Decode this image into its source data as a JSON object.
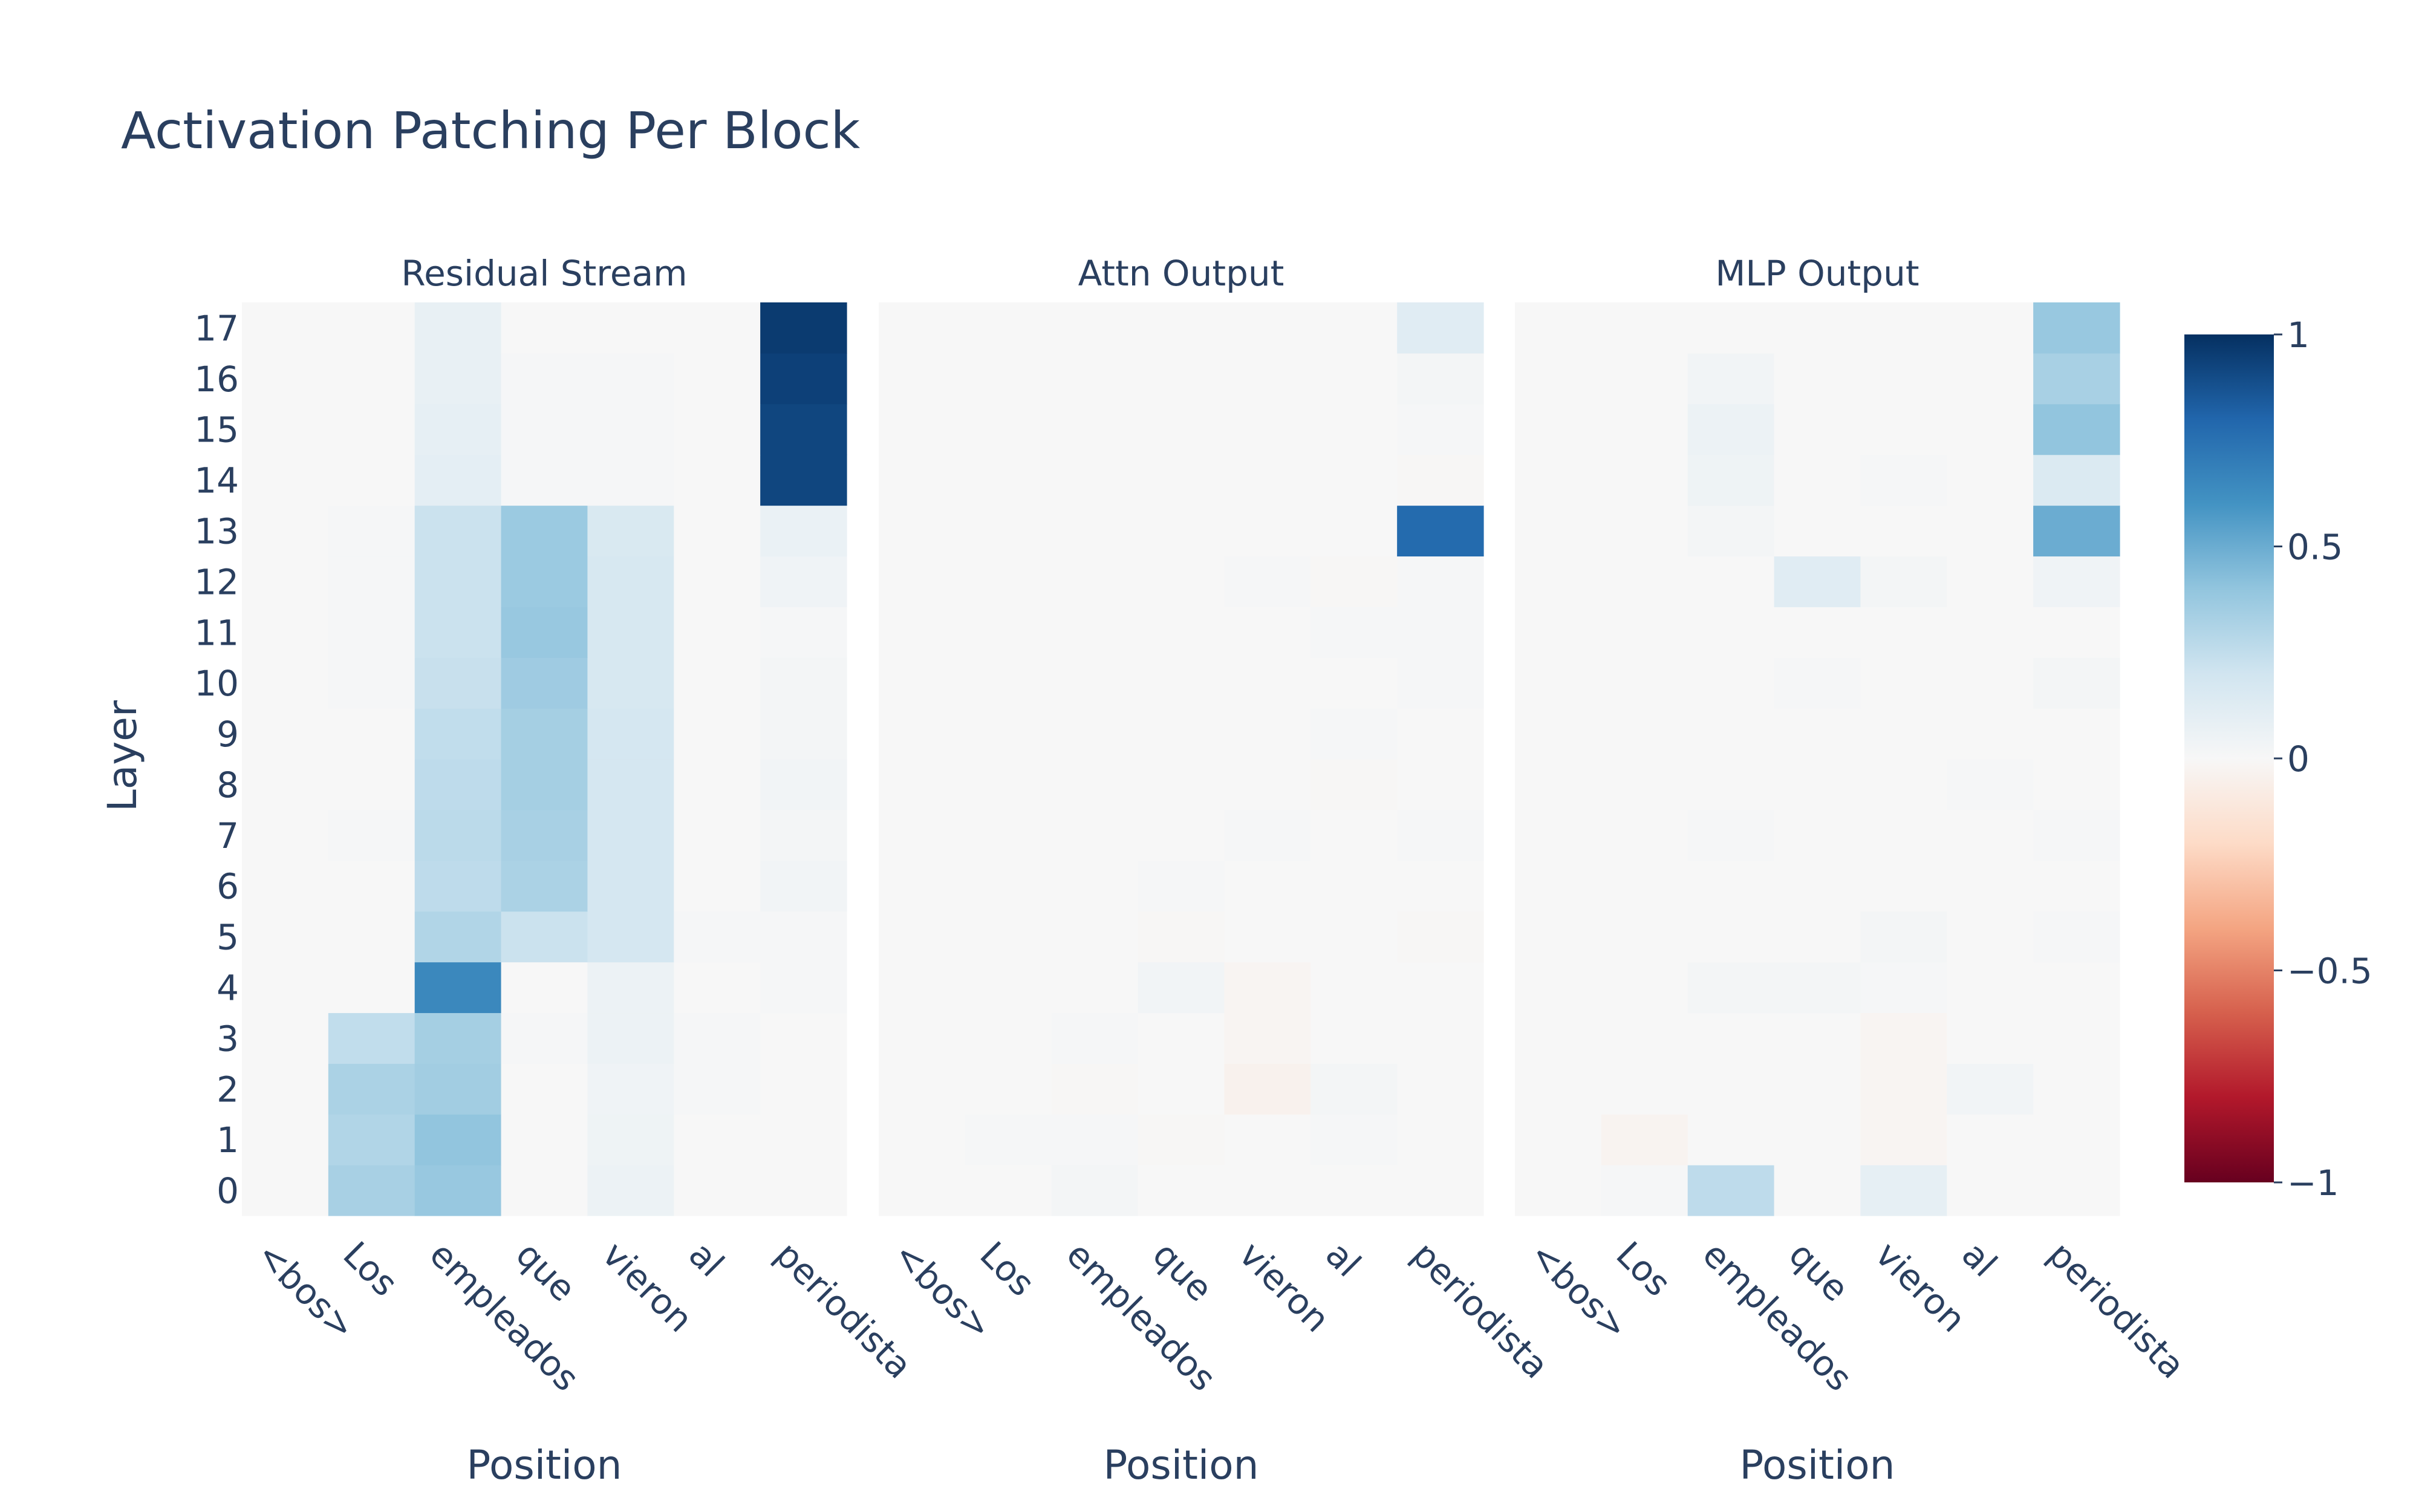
{
  "chart_data": {
    "type": "heatmap",
    "title": "Activation Patching Per Block",
    "ylabel": "Layer",
    "xlabel": "Position",
    "positions": [
      "<bos>",
      "Los",
      "empleados",
      "que",
      "vieron",
      "al",
      "periodista"
    ],
    "layers": [
      0,
      1,
      2,
      3,
      4,
      5,
      6,
      7,
      8,
      9,
      10,
      11,
      12,
      13,
      14,
      15,
      16,
      17
    ],
    "zlim": [
      -1,
      1
    ],
    "colorbar_ticks": [
      {
        "value": 1,
        "label": "1"
      },
      {
        "value": 0.5,
        "label": "0.5"
      },
      {
        "value": 0,
        "label": "0"
      },
      {
        "value": -0.5,
        "label": "−0.5"
      },
      {
        "value": -1,
        "label": "−1"
      }
    ],
    "colorscale": [
      [
        0.0,
        "#67001f"
      ],
      [
        0.1,
        "#b2182b"
      ],
      [
        0.2,
        "#d6604d"
      ],
      [
        0.3,
        "#f4a582"
      ],
      [
        0.4,
        "#fddbc7"
      ],
      [
        0.5,
        "#f7f7f7"
      ],
      [
        0.6,
        "#d1e5f0"
      ],
      [
        0.7,
        "#92c5de"
      ],
      [
        0.8,
        "#4393c3"
      ],
      [
        0.9,
        "#2166ac"
      ],
      [
        1.0,
        "#053061"
      ]
    ],
    "panels": [
      {
        "name": "Residual Stream",
        "z": [
          [
            0.0,
            0.33,
            0.38,
            0.0,
            0.06,
            0.0,
            0.0
          ],
          [
            0.0,
            0.3,
            0.4,
            0.0,
            0.05,
            0.0,
            0.0
          ],
          [
            0.0,
            0.32,
            0.35,
            0.0,
            0.04,
            0.01,
            0.0
          ],
          [
            0.0,
            0.25,
            0.34,
            0.01,
            0.06,
            0.01,
            0.0
          ],
          [
            0.0,
            0.0,
            0.65,
            0.0,
            0.06,
            0.0,
            0.01
          ],
          [
            0.0,
            0.0,
            0.3,
            0.22,
            0.18,
            0.01,
            0.01
          ],
          [
            0.0,
            0.0,
            0.26,
            0.32,
            0.18,
            0.0,
            0.03
          ],
          [
            0.0,
            0.01,
            0.27,
            0.33,
            0.18,
            0.0,
            0.02
          ],
          [
            0.0,
            0.0,
            0.26,
            0.34,
            0.18,
            0.0,
            0.03
          ],
          [
            0.0,
            0.0,
            0.25,
            0.34,
            0.18,
            0.0,
            0.02
          ],
          [
            0.0,
            0.01,
            0.23,
            0.36,
            0.17,
            0.0,
            0.02
          ],
          [
            0.0,
            0.01,
            0.22,
            0.38,
            0.17,
            0.0,
            0.01
          ],
          [
            0.0,
            0.01,
            0.22,
            0.37,
            0.17,
            0.0,
            0.04
          ],
          [
            0.0,
            0.01,
            0.22,
            0.37,
            0.16,
            0.0,
            0.07
          ],
          [
            0.0,
            0.0,
            0.1,
            0.01,
            0.01,
            0.0,
            0.92
          ],
          [
            0.0,
            0.0,
            0.09,
            0.01,
            0.01,
            0.0,
            0.92
          ],
          [
            0.0,
            0.0,
            0.08,
            0.01,
            0.01,
            0.0,
            0.94
          ],
          [
            0.0,
            0.0,
            0.08,
            0.0,
            0.0,
            0.0,
            0.96
          ]
        ]
      },
      {
        "name": "Attn Output",
        "z": [
          [
            0.0,
            0.0,
            0.02,
            0.0,
            0.0,
            0.0,
            0.0
          ],
          [
            0.0,
            0.01,
            0.01,
            -0.01,
            0.0,
            0.01,
            0.0
          ],
          [
            0.0,
            0.0,
            -0.01,
            0.0,
            -0.04,
            0.02,
            0.0
          ],
          [
            0.0,
            0.0,
            0.01,
            0.0,
            -0.02,
            0.0,
            0.0
          ],
          [
            0.0,
            0.0,
            0.0,
            0.03,
            -0.02,
            0.0,
            0.0
          ],
          [
            0.0,
            0.0,
            0.0,
            -0.01,
            0.0,
            0.0,
            -0.01
          ],
          [
            0.0,
            0.0,
            0.0,
            0.01,
            0.0,
            0.0,
            0.0
          ],
          [
            0.0,
            0.0,
            0.0,
            0.0,
            0.01,
            0.0,
            0.01
          ],
          [
            0.0,
            0.0,
            0.0,
            0.0,
            0.0,
            -0.01,
            0.0
          ],
          [
            0.0,
            0.0,
            0.0,
            0.0,
            0.0,
            0.01,
            0.0
          ],
          [
            0.0,
            0.0,
            0.0,
            0.0,
            0.0,
            0.0,
            0.01
          ],
          [
            0.0,
            0.0,
            0.0,
            0.0,
            0.0,
            0.01,
            0.01
          ],
          [
            0.0,
            0.0,
            0.0,
            0.0,
            0.01,
            -0.01,
            0.01
          ],
          [
            0.0,
            0.0,
            0.0,
            0.0,
            0.0,
            0.0,
            0.78
          ],
          [
            0.0,
            0.0,
            0.0,
            0.0,
            0.0,
            0.0,
            -0.01
          ],
          [
            0.0,
            0.0,
            0.0,
            0.0,
            0.0,
            0.0,
            0.01
          ],
          [
            0.0,
            0.0,
            0.0,
            0.0,
            0.0,
            0.0,
            0.02
          ],
          [
            0.0,
            0.0,
            0.0,
            0.0,
            0.0,
            0.0,
            0.12
          ]
        ]
      },
      {
        "name": "MLP Output",
        "z": [
          [
            0.0,
            0.01,
            0.26,
            0.0,
            0.09,
            0.0,
            0.0
          ],
          [
            0.0,
            -0.03,
            0.0,
            0.0,
            -0.02,
            0.0,
            0.0
          ],
          [
            0.0,
            0.0,
            0.0,
            0.0,
            -0.02,
            0.03,
            0.0
          ],
          [
            0.0,
            0.0,
            0.0,
            0.0,
            -0.02,
            0.0,
            0.0
          ],
          [
            0.0,
            0.0,
            0.02,
            0.02,
            0.01,
            0.0,
            0.0
          ],
          [
            0.0,
            0.0,
            0.0,
            0.0,
            0.02,
            0.0,
            0.01
          ],
          [
            0.0,
            0.0,
            0.0,
            0.0,
            0.0,
            0.0,
            0.0
          ],
          [
            0.0,
            0.0,
            0.01,
            0.0,
            0.0,
            0.0,
            0.01
          ],
          [
            0.0,
            0.0,
            0.0,
            0.0,
            0.0,
            0.01,
            0.0
          ],
          [
            0.0,
            0.0,
            0.0,
            0.0,
            0.0,
            0.0,
            0.0
          ],
          [
            0.0,
            0.0,
            0.0,
            0.01,
            0.0,
            0.0,
            0.02
          ],
          [
            0.0,
            0.0,
            0.0,
            0.0,
            0.0,
            0.0,
            0.0
          ],
          [
            0.0,
            0.0,
            0.0,
            0.12,
            0.02,
            0.0,
            0.04
          ],
          [
            0.0,
            0.0,
            0.02,
            0.0,
            0.0,
            0.0,
            0.5
          ],
          [
            0.0,
            0.0,
            0.05,
            0.0,
            0.01,
            0.0,
            0.15
          ],
          [
            0.0,
            0.0,
            0.06,
            0.0,
            0.0,
            0.0,
            0.4
          ],
          [
            0.0,
            0.0,
            0.03,
            0.0,
            0.0,
            0.0,
            0.33
          ],
          [
            0.0,
            0.0,
            0.0,
            0.0,
            0.0,
            0.0,
            0.38
          ]
        ]
      }
    ]
  }
}
